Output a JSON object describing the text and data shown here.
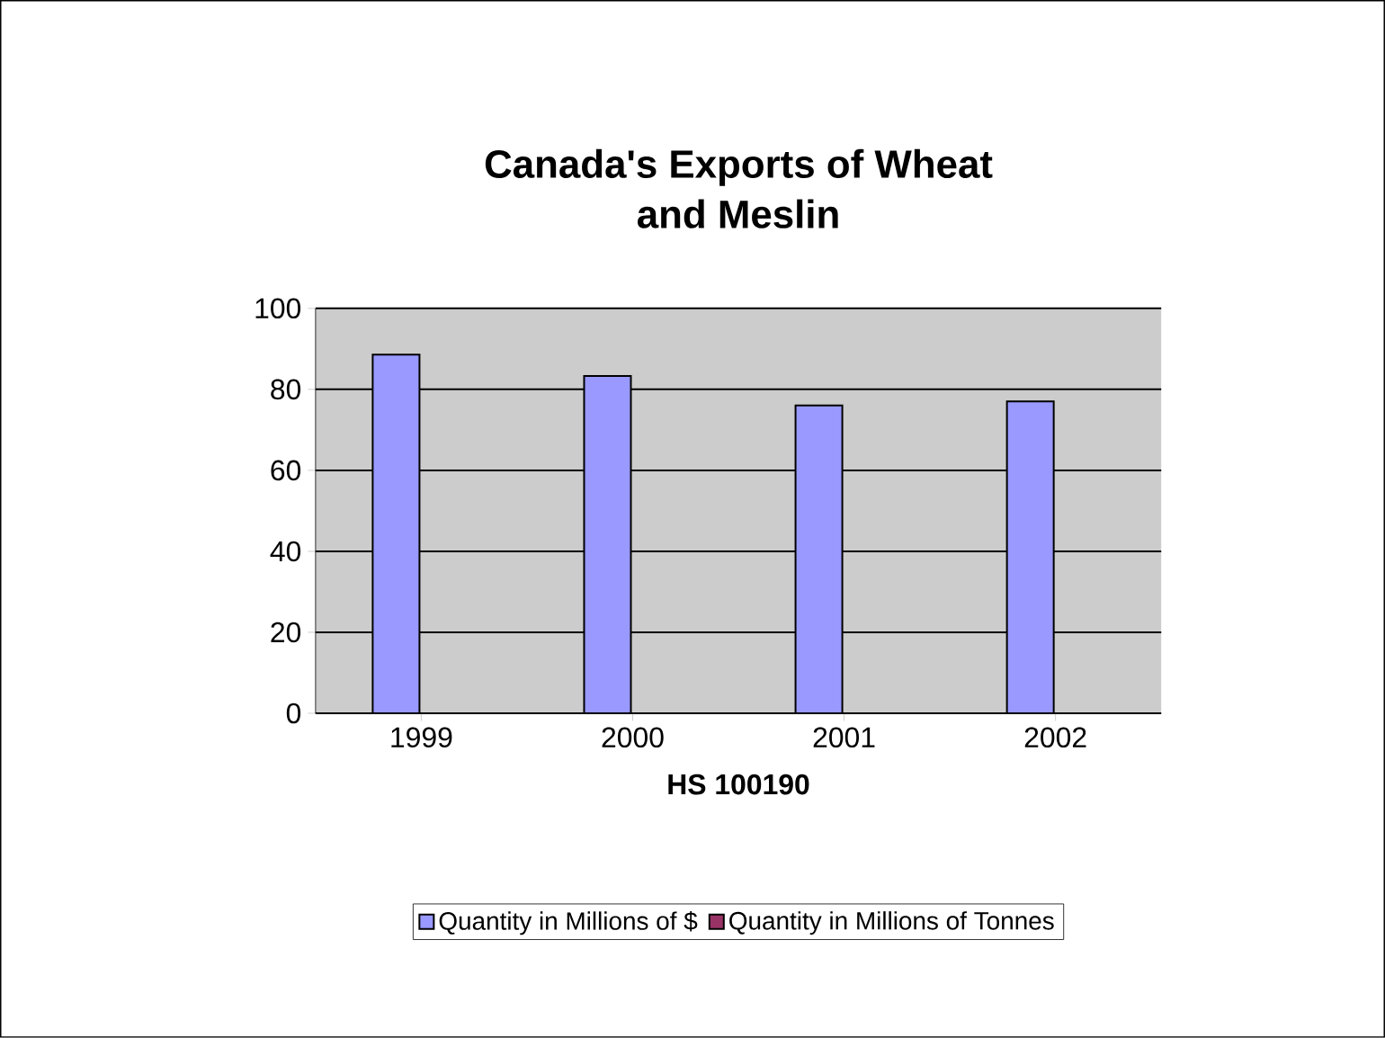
{
  "chart_data": {
    "type": "bar",
    "title": "Canada's Exports of Wheat and Meslin",
    "xlabel": "HS 100190",
    "categories": [
      "1999",
      "2000",
      "2001",
      "2002"
    ],
    "series": [
      {
        "name": "Quantity in Millions of $",
        "color": "#9999ff",
        "values": [
          88.6,
          83.3,
          76,
          77
        ]
      },
      {
        "name": "Quantity in Millions of Tonnes",
        "color": "#993366",
        "values": [
          0,
          0,
          0,
          0
        ]
      }
    ],
    "ylim": [
      0,
      100
    ],
    "yticks": [
      0,
      20,
      40,
      60,
      80,
      100
    ],
    "grid": "y",
    "legend": "bottom"
  }
}
